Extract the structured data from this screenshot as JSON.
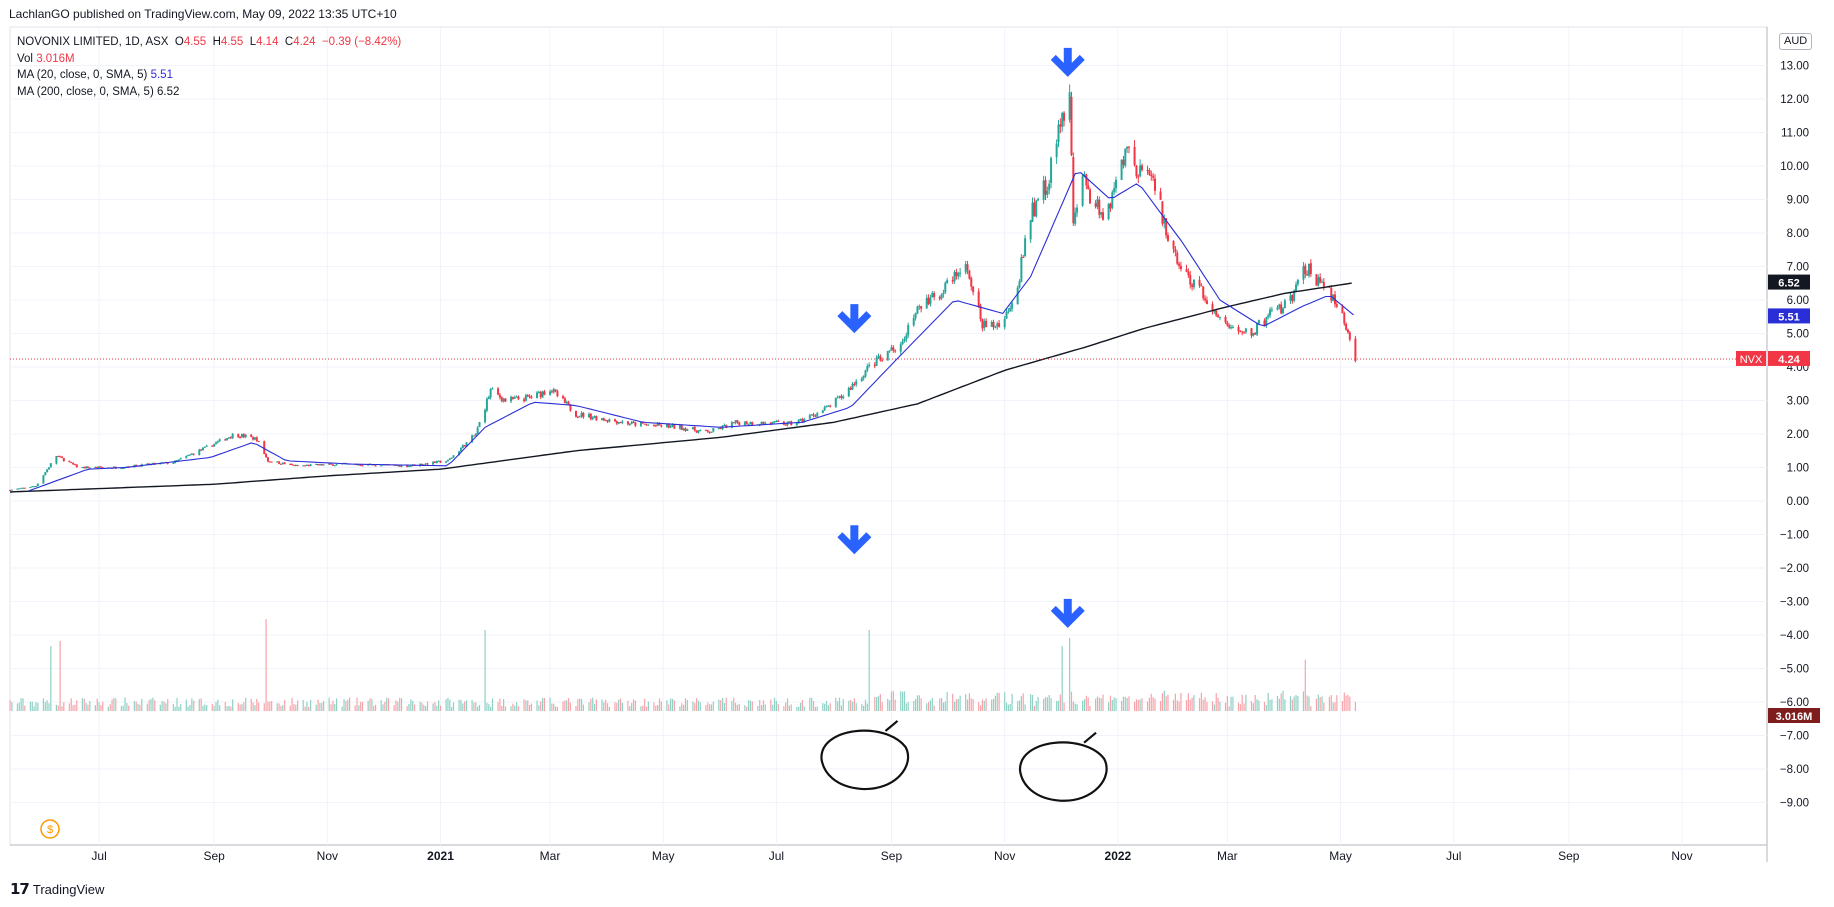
{
  "header": {
    "published_text": "LachlanGO published on TradingView.com, May 09, 2022 13:35 UTC+10"
  },
  "legend": {
    "symbol_line": "NOVONIX LIMITED, 1D, ASX",
    "open_label": "O",
    "open": "4.55",
    "high_label": "H",
    "high": "4.55",
    "low_label": "L",
    "low": "4.14",
    "close_label": "C",
    "close": "4.24",
    "change": "−0.39 (−8.42%)",
    "vol_label": "Vol",
    "vol": "3.016M",
    "ma20_label": "MA (20, close, 0, SMA, 5)",
    "ma20": "5.51",
    "ma200_label": "MA (200, close, 0, SMA, 5)",
    "ma200": "6.52"
  },
  "footer": {
    "brand": "TradingView"
  },
  "colors": {
    "up": "#26a69a",
    "down": "#f23645",
    "ma20": "#2a2ed6",
    "ma200": "#131722",
    "annotation_arrow": "#2962ff"
  },
  "chart_data": {
    "type": "candlestick",
    "ticker": "NVX",
    "currency": "AUD",
    "last_price": "4.24",
    "ma20_value": "5.51",
    "ma200_value": "6.52",
    "volume_value": "3.016M",
    "ylim": [
      -10,
      14
    ],
    "y_ticks": [
      "13.00",
      "12.00",
      "11.00",
      "10.00",
      "9.00",
      "8.00",
      "7.00",
      "6.00",
      "5.00",
      "4.00",
      "3.00",
      "2.00",
      "1.00",
      "0.00",
      "−1.00",
      "−2.00",
      "−3.00",
      "−4.00",
      "−5.00",
      "−6.00",
      "−7.00",
      "−8.00",
      "−9.00"
    ],
    "x_ticks": [
      {
        "label": "Jul",
        "date": "2020-07-01"
      },
      {
        "label": "Sep",
        "date": "2020-09-01"
      },
      {
        "label": "Nov",
        "date": "2020-11-01"
      },
      {
        "label": "2021",
        "date": "2021-01-01",
        "bold": true
      },
      {
        "label": "Mar",
        "date": "2021-03-01"
      },
      {
        "label": "May",
        "date": "2021-05-01"
      },
      {
        "label": "Jul",
        "date": "2021-07-01"
      },
      {
        "label": "Sep",
        "date": "2021-09-01"
      },
      {
        "label": "Nov",
        "date": "2021-11-01"
      },
      {
        "label": "2022",
        "date": "2022-01-01",
        "bold": true
      },
      {
        "label": "Mar",
        "date": "2022-03-01"
      },
      {
        "label": "May",
        "date": "2022-05-01"
      },
      {
        "label": "Jul",
        "date": "2022-07-01"
      },
      {
        "label": "Sep",
        "date": "2022-09-01"
      },
      {
        "label": "Nov",
        "date": "2022-11-01"
      }
    ],
    "x_range": [
      "2020-05-14",
      "2022-12-31"
    ],
    "price_path": [
      [
        "2020-05-14",
        0.33
      ],
      [
        "2020-05-28",
        0.45
      ],
      [
        "2020-06-08",
        1.35
      ],
      [
        "2020-06-20",
        1.0
      ],
      [
        "2020-07-10",
        1.0
      ],
      [
        "2020-08-10",
        1.15
      ],
      [
        "2020-08-28",
        1.6
      ],
      [
        "2020-09-12",
        2.0
      ],
      [
        "2020-09-24",
        1.85
      ],
      [
        "2020-09-30",
        1.2
      ],
      [
        "2020-10-15",
        1.05
      ],
      [
        "2020-11-10",
        1.1
      ],
      [
        "2020-12-15",
        1.05
      ],
      [
        "2021-01-05",
        1.2
      ],
      [
        "2021-01-20",
        2.0
      ],
      [
        "2021-01-28",
        3.3
      ],
      [
        "2021-02-05",
        3.0
      ],
      [
        "2021-02-20",
        3.1
      ],
      [
        "2021-03-01",
        3.35
      ],
      [
        "2021-03-15",
        2.6
      ],
      [
        "2021-04-15",
        2.3
      ],
      [
        "2021-05-10",
        2.2
      ],
      [
        "2021-05-25",
        2.05
      ],
      [
        "2021-06-10",
        2.35
      ],
      [
        "2021-07-10",
        2.3
      ],
      [
        "2021-07-26",
        2.7
      ],
      [
        "2021-08-05",
        3.1
      ],
      [
        "2021-08-20",
        4.0
      ],
      [
        "2021-09-05",
        4.7
      ],
      [
        "2021-09-15",
        5.7
      ],
      [
        "2021-10-01",
        6.4
      ],
      [
        "2021-10-12",
        7.0
      ],
      [
        "2021-10-20",
        5.2
      ],
      [
        "2021-10-31",
        5.3
      ],
      [
        "2021-11-08",
        6.5
      ],
      [
        "2021-11-15",
        8.5
      ],
      [
        "2021-11-25",
        9.7
      ],
      [
        "2021-12-02",
        11.5
      ],
      [
        "2021-12-06",
        12.2
      ],
      [
        "2021-12-08",
        8.5
      ],
      [
        "2021-12-12",
        9.6
      ],
      [
        "2021-12-25",
        8.5
      ],
      [
        "2022-01-05",
        10.4
      ],
      [
        "2022-01-15",
        9.8
      ],
      [
        "2022-01-22",
        9.2
      ],
      [
        "2022-01-28",
        7.8
      ],
      [
        "2022-02-05",
        6.8
      ],
      [
        "2022-02-15",
        6.2
      ],
      [
        "2022-02-25",
        5.4
      ],
      [
        "2022-03-05",
        5.1
      ],
      [
        "2022-03-15",
        5.05
      ],
      [
        "2022-03-25",
        5.6
      ],
      [
        "2022-04-05",
        6.0
      ],
      [
        "2022-04-12",
        7.0
      ],
      [
        "2022-04-18",
        6.6
      ],
      [
        "2022-04-28",
        6.0
      ],
      [
        "2022-05-05",
        5.0
      ],
      [
        "2022-05-09",
        4.24
      ]
    ],
    "ma20_path": [
      [
        "2020-05-24",
        0.3
      ],
      [
        "2020-06-25",
        0.95
      ],
      [
        "2020-07-15",
        1.0
      ],
      [
        "2020-08-30",
        1.3
      ],
      [
        "2020-09-22",
        1.75
      ],
      [
        "2020-10-10",
        1.2
      ],
      [
        "2020-11-15",
        1.1
      ],
      [
        "2021-01-05",
        1.05
      ],
      [
        "2021-01-25",
        2.2
      ],
      [
        "2021-02-20",
        2.95
      ],
      [
        "2021-03-15",
        2.85
      ],
      [
        "2021-04-20",
        2.35
      ],
      [
        "2021-06-01",
        2.2
      ],
      [
        "2021-07-15",
        2.35
      ],
      [
        "2021-08-10",
        2.8
      ],
      [
        "2021-09-05",
        4.3
      ],
      [
        "2021-10-05",
        6.0
      ],
      [
        "2021-10-31",
        5.6
      ],
      [
        "2021-11-15",
        6.7
      ],
      [
        "2021-12-10",
        9.9
      ],
      [
        "2021-12-28",
        9.0
      ],
      [
        "2022-01-12",
        9.5
      ],
      [
        "2022-02-05",
        7.7
      ],
      [
        "2022-02-25",
        6.0
      ],
      [
        "2022-03-20",
        5.2
      ],
      [
        "2022-04-10",
        5.8
      ],
      [
        "2022-04-25",
        6.15
      ],
      [
        "2022-05-09",
        5.51
      ]
    ],
    "ma200_path": [
      [
        "2020-05-14",
        0.27
      ],
      [
        "2020-09-01",
        0.5
      ],
      [
        "2020-11-01",
        0.75
      ],
      [
        "2021-01-01",
        0.95
      ],
      [
        "2021-03-15",
        1.5
      ],
      [
        "2021-06-01",
        1.9
      ],
      [
        "2021-08-01",
        2.35
      ],
      [
        "2021-09-15",
        2.9
      ],
      [
        "2021-11-01",
        3.9
      ],
      [
        "2021-12-15",
        4.6
      ],
      [
        "2022-01-15",
        5.15
      ],
      [
        "2022-03-01",
        5.8
      ],
      [
        "2022-04-01",
        6.2
      ],
      [
        "2022-05-09",
        6.52
      ]
    ],
    "volume_spikes": [
      [
        "2020-06-05",
        2.4
      ],
      [
        "2020-06-10",
        2.6
      ],
      [
        "2020-09-27",
        6.5
      ],
      [
        "2020-09-29",
        3.4
      ],
      [
        "2021-01-25",
        3.0
      ],
      [
        "2021-08-15",
        3.3
      ],
      [
        "2021-08-20",
        3.0
      ],
      [
        "2021-12-02",
        2.4
      ],
      [
        "2021-12-04",
        2.6
      ],
      [
        "2021-12-06",
        2.7
      ],
      [
        "2022-04-12",
        1.9
      ]
    ],
    "annotations": [
      {
        "shape": "arrow-down",
        "date": "2021-12-05",
        "y": 13.05
      },
      {
        "shape": "arrow-down",
        "date": "2021-08-12",
        "y": 5.4
      },
      {
        "shape": "arrow-down",
        "date": "2021-08-12",
        "y": -1.2
      },
      {
        "shape": "arrow-down",
        "date": "2021-12-05",
        "y": -3.4
      },
      {
        "shape": "circle",
        "date": "2021-08-18",
        "y": -7.7
      },
      {
        "shape": "circle",
        "date": "2021-12-03",
        "y": -8.05
      }
    ]
  }
}
